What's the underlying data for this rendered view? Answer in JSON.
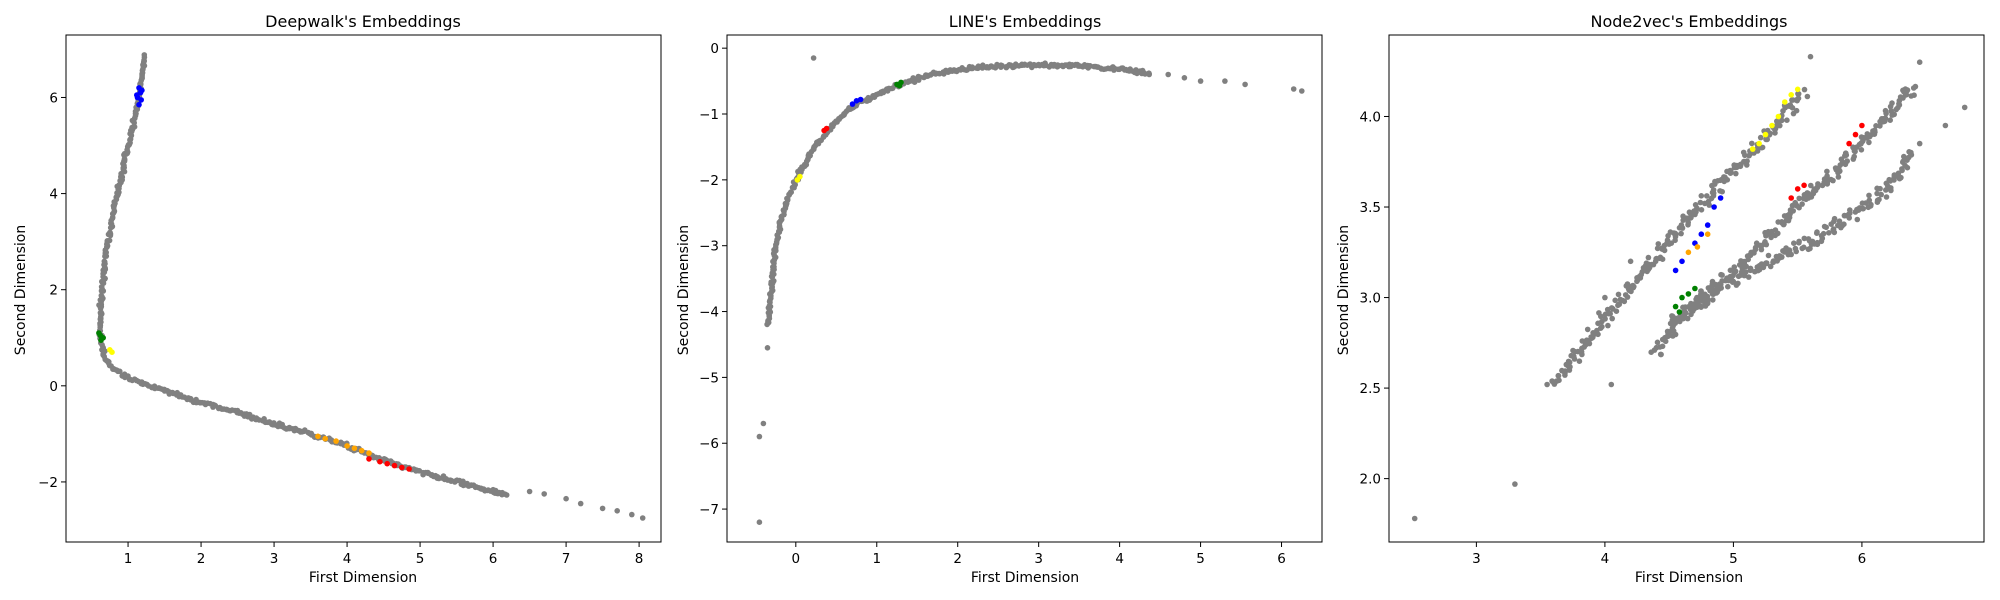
{
  "chart_data": [
    {
      "type": "scatter",
      "title": "Deepwalk's Embeddings",
      "xlabel": "First Dimension",
      "ylabel": "Second Dimension",
      "xlim": [
        0.15,
        8.3
      ],
      "ylim": [
        -3.25,
        7.3
      ],
      "xticks": [
        1,
        2,
        3,
        4,
        5,
        6,
        7,
        8
      ],
      "yticks": [
        -2,
        0,
        2,
        4,
        6
      ],
      "xtick_labels": [
        "1",
        "2",
        "3",
        "4",
        "5",
        "6",
        "7",
        "8"
      ],
      "ytick_labels": [
        "−2",
        "0",
        "2",
        "4",
        "6"
      ],
      "grid": false,
      "gray_curves": [
        [
          [
            1.22,
            6.85
          ],
          [
            1.2,
            6.5
          ],
          [
            1.15,
            6.0
          ],
          [
            1.08,
            5.5
          ],
          [
            1.0,
            5.0
          ],
          [
            0.9,
            4.3
          ],
          [
            0.8,
            3.6
          ],
          [
            0.72,
            3.0
          ],
          [
            0.67,
            2.4
          ],
          [
            0.63,
            1.8
          ],
          [
            0.62,
            1.3
          ],
          [
            0.63,
            0.9
          ],
          [
            0.68,
            0.6
          ],
          [
            0.8,
            0.35
          ],
          [
            1.1,
            0.1
          ],
          [
            1.5,
            -0.1
          ],
          [
            2.0,
            -0.35
          ],
          [
            2.5,
            -0.55
          ],
          [
            3.0,
            -0.8
          ],
          [
            3.5,
            -1.0
          ],
          [
            4.0,
            -1.25
          ],
          [
            4.5,
            -1.55
          ],
          [
            5.0,
            -1.8
          ],
          [
            5.5,
            -2.0
          ],
          [
            6.0,
            -2.2
          ],
          [
            6.2,
            -2.3
          ]
        ]
      ],
      "gray_outliers": [
        [
          6.5,
          -2.2
        ],
        [
          6.7,
          -2.25
        ],
        [
          7.0,
          -2.35
        ],
        [
          7.2,
          -2.45
        ],
        [
          7.5,
          -2.55
        ],
        [
          7.7,
          -2.6
        ],
        [
          7.9,
          -2.68
        ],
        [
          8.05,
          -2.75
        ]
      ],
      "colored_points": [
        {
          "color": "#0000ff",
          "points": [
            [
              1.15,
              6.2
            ],
            [
              1.17,
              6.1
            ],
            [
              1.13,
              6.0
            ],
            [
              1.18,
              5.95
            ],
            [
              1.15,
              5.85
            ],
            [
              1.19,
              6.15
            ],
            [
              1.12,
              6.05
            ]
          ]
        },
        {
          "color": "#008000",
          "points": [
            [
              0.6,
              1.1
            ],
            [
              0.63,
              0.95
            ],
            [
              0.66,
              1.0
            ],
            [
              0.62,
              1.05
            ]
          ]
        },
        {
          "color": "#ffff00",
          "points": [
            [
              0.75,
              0.75
            ],
            [
              0.78,
              0.7
            ]
          ]
        },
        {
          "color": "#ffa500",
          "points": [
            [
              3.6,
              -1.05
            ],
            [
              3.7,
              -1.1
            ],
            [
              3.85,
              -1.15
            ],
            [
              4.0,
              -1.25
            ],
            [
              4.1,
              -1.3
            ],
            [
              4.2,
              -1.35
            ],
            [
              4.3,
              -1.4
            ]
          ]
        },
        {
          "color": "#ff0000",
          "points": [
            [
              4.3,
              -1.52
            ],
            [
              4.45,
              -1.58
            ],
            [
              4.55,
              -1.62
            ],
            [
              4.65,
              -1.66
            ],
            [
              4.75,
              -1.7
            ],
            [
              4.85,
              -1.73
            ]
          ]
        }
      ]
    },
    {
      "type": "scatter",
      "title": "LINE's Embeddings",
      "xlabel": "First Dimension",
      "ylabel": "Second Dimension",
      "xlim": [
        -0.85,
        6.5
      ],
      "ylim": [
        -7.5,
        0.2
      ],
      "xticks": [
        0,
        1,
        2,
        3,
        4,
        5,
        6
      ],
      "yticks": [
        -7,
        -6,
        -5,
        -4,
        -3,
        -2,
        -1,
        0
      ],
      "xtick_labels": [
        "0",
        "1",
        "2",
        "3",
        "4",
        "5",
        "6"
      ],
      "ytick_labels": [
        "−7",
        "−6",
        "−5",
        "−4",
        "−3",
        "−2",
        "−1",
        "0"
      ],
      "grid": false,
      "gray_curves": [
        [
          [
            -0.35,
            -4.2
          ],
          [
            -0.3,
            -3.7
          ],
          [
            -0.27,
            -3.2
          ],
          [
            -0.2,
            -2.7
          ],
          [
            -0.1,
            -2.3
          ],
          [
            0.05,
            -1.9
          ],
          [
            0.2,
            -1.55
          ],
          [
            0.4,
            -1.25
          ],
          [
            0.6,
            -1.0
          ],
          [
            0.8,
            -0.82
          ],
          [
            1.0,
            -0.7
          ],
          [
            1.3,
            -0.55
          ],
          [
            1.6,
            -0.42
          ],
          [
            2.0,
            -0.32
          ],
          [
            2.5,
            -0.27
          ],
          [
            3.0,
            -0.25
          ],
          [
            3.5,
            -0.27
          ],
          [
            4.0,
            -0.32
          ],
          [
            4.4,
            -0.38
          ]
        ]
      ],
      "gray_outliers": [
        [
          0.22,
          -0.15
        ],
        [
          -0.45,
          -5.9
        ],
        [
          -0.4,
          -5.7
        ],
        [
          -0.35,
          -4.55
        ],
        [
          -0.45,
          -7.2
        ],
        [
          4.8,
          -0.45
        ],
        [
          5.0,
          -0.5
        ],
        [
          5.3,
          -0.5
        ],
        [
          5.55,
          -0.55
        ],
        [
          6.15,
          -0.62
        ],
        [
          6.25,
          -0.65
        ],
        [
          4.6,
          -0.4
        ]
      ],
      "colored_points": [
        {
          "color": "#0000ff",
          "points": [
            [
              0.7,
              -0.85
            ],
            [
              0.75,
              -0.8
            ],
            [
              0.8,
              -0.78
            ]
          ]
        },
        {
          "color": "#ff0000",
          "points": [
            [
              0.35,
              -1.25
            ],
            [
              0.38,
              -1.22
            ]
          ]
        },
        {
          "color": "#008000",
          "points": [
            [
              1.25,
              -0.55
            ],
            [
              1.3,
              -0.52
            ],
            [
              1.28,
              -0.57
            ]
          ]
        },
        {
          "color": "#ffff00",
          "points": [
            [
              0.02,
              -2.0
            ],
            [
              0.05,
              -1.95
            ]
          ]
        }
      ]
    },
    {
      "type": "scatter",
      "title": "Node2vec's Embeddings",
      "xlabel": "First Dimension",
      "ylabel": "Second Dimension",
      "xlim": [
        2.32,
        6.95
      ],
      "ylim": [
        1.65,
        4.45
      ],
      "xticks": [
        3,
        4,
        5,
        6
      ],
      "yticks": [
        2.0,
        2.5,
        3.0,
        3.5,
        4.0
      ],
      "xtick_labels": [
        "3",
        "4",
        "5",
        "6"
      ],
      "ytick_labels": [
        "2.0",
        "2.5",
        "3.0",
        "3.5",
        "4.0"
      ],
      "grid": false,
      "gray_curves": [
        [
          [
            3.6,
            2.52
          ],
          [
            3.8,
            2.7
          ],
          [
            4.0,
            2.88
          ],
          [
            4.2,
            3.05
          ],
          [
            4.4,
            3.22
          ],
          [
            4.6,
            3.4
          ],
          [
            4.8,
            3.55
          ],
          [
            5.0,
            3.7
          ],
          [
            5.2,
            3.85
          ],
          [
            5.4,
            4.0
          ],
          [
            5.55,
            4.15
          ]
        ],
        [
          [
            4.4,
            2.7
          ],
          [
            4.6,
            2.9
          ],
          [
            4.8,
            3.05
          ],
          [
            5.0,
            3.15
          ],
          [
            5.2,
            3.3
          ],
          [
            5.5,
            3.5
          ],
          [
            5.8,
            3.7
          ],
          [
            6.0,
            3.85
          ],
          [
            6.2,
            4.0
          ],
          [
            6.4,
            4.18
          ]
        ],
        [
          [
            4.5,
            2.85
          ],
          [
            4.8,
            3.0
          ],
          [
            5.0,
            3.1
          ],
          [
            5.3,
            3.2
          ],
          [
            5.6,
            3.3
          ],
          [
            5.9,
            3.45
          ],
          [
            6.2,
            3.6
          ],
          [
            6.4,
            3.8
          ]
        ]
      ],
      "gray_outliers": [
        [
          2.52,
          1.78
        ],
        [
          3.3,
          1.97
        ],
        [
          3.55,
          2.52
        ],
        [
          4.05,
          2.52
        ],
        [
          5.6,
          4.33
        ],
        [
          6.45,
          4.3
        ],
        [
          6.8,
          4.05
        ],
        [
          6.65,
          3.95
        ],
        [
          6.45,
          3.85
        ],
        [
          4.2,
          3.2
        ],
        [
          4.0,
          3.0
        ]
      ],
      "colored_points": [
        {
          "color": "#ffff00",
          "points": [
            [
              5.2,
              3.85
            ],
            [
              5.25,
              3.9
            ],
            [
              5.3,
              3.95
            ],
            [
              5.35,
              4.0
            ],
            [
              5.4,
              4.08
            ],
            [
              5.45,
              4.12
            ],
            [
              5.5,
              4.15
            ],
            [
              5.15,
              3.82
            ]
          ]
        },
        {
          "color": "#ff0000",
          "points": [
            [
              5.9,
              3.85
            ],
            [
              5.95,
              3.9
            ],
            [
              6.0,
              3.95
            ],
            [
              5.5,
              3.6
            ],
            [
              5.55,
              3.62
            ],
            [
              5.45,
              3.55
            ]
          ]
        },
        {
          "color": "#0000ff",
          "points": [
            [
              4.85,
              3.5
            ],
            [
              4.9,
              3.55
            ],
            [
              4.8,
              3.4
            ],
            [
              4.75,
              3.35
            ],
            [
              4.6,
              3.2
            ],
            [
              4.7,
              3.3
            ],
            [
              4.55,
              3.15
            ]
          ]
        },
        {
          "color": "#ffa500",
          "points": [
            [
              4.65,
              3.25
            ],
            [
              4.72,
              3.28
            ],
            [
              4.8,
              3.35
            ]
          ]
        },
        {
          "color": "#008000",
          "points": [
            [
              4.55,
              2.95
            ],
            [
              4.6,
              3.0
            ],
            [
              4.65,
              3.02
            ],
            [
              4.7,
              3.05
            ],
            [
              4.58,
              2.92
            ]
          ]
        }
      ]
    }
  ]
}
